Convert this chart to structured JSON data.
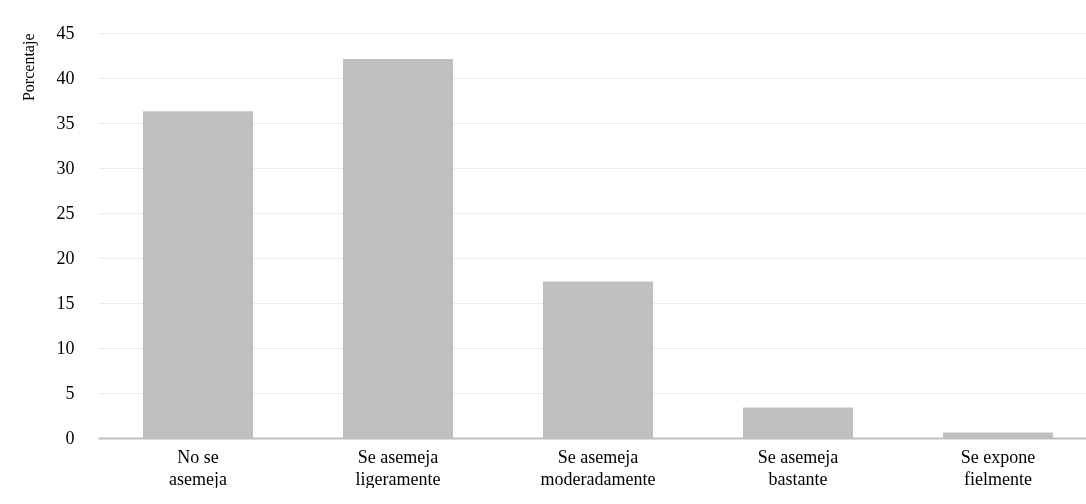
{
  "chart_data": {
    "type": "bar",
    "ylabel": "Porcentaje",
    "categories": [
      "No se asemeja",
      "Se asemeja ligeramente",
      "Se asemeja moderadamente",
      "Se asemeja bastante",
      "Se expone fielmente"
    ],
    "values": [
      36.3,
      42.1,
      17.4,
      3.4,
      0.6
    ],
    "color": "#bfbfbf",
    "ylim": [
      0,
      45
    ],
    "yticks": [
      0,
      5,
      10,
      15,
      20,
      25,
      30,
      35,
      40,
      45
    ],
    "grid": "y"
  }
}
